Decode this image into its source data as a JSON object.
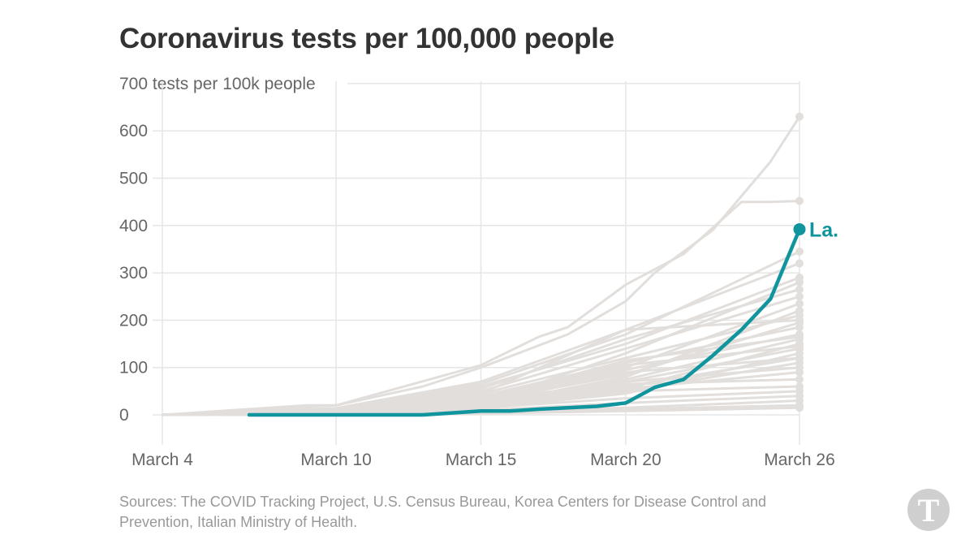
{
  "title": "Coronavirus tests per 100,000 people",
  "sources": "Sources: The COVID Tracking Project, U.S. Census Bureau, Korea Centers for Disease Control and Prevention, Italian Ministry of Health.",
  "logo_icon": "nyt-t-logo-icon",
  "colors": {
    "highlight": "#10959e",
    "background_series": "#e2dedb",
    "grid": "#e6e6e6",
    "axis_text": "#666666",
    "title": "#333333",
    "sources": "#999999"
  },
  "chart_data": {
    "type": "line",
    "title": "Coronavirus tests per 100,000 people",
    "ylabel": "tests per 100k people",
    "ylim": [
      0,
      700
    ],
    "yticks": [
      0,
      100,
      200,
      300,
      400,
      500,
      600,
      700
    ],
    "ytick_labels": [
      "0",
      "100",
      "200",
      "300",
      "400",
      "500",
      "600",
      "700 tests per 100k people"
    ],
    "x_start_day": 4,
    "x_end_day": 26,
    "xticks": [
      4,
      10,
      15,
      20,
      26
    ],
    "xtick_labels": [
      "March 4",
      "March 10",
      "March 15",
      "March 20",
      "March 26"
    ],
    "grid": true,
    "highlight": {
      "name": "La.",
      "x": [
        7,
        13,
        15,
        16,
        17,
        18,
        19,
        20,
        21,
        22,
        23,
        24,
        25,
        26
      ],
      "values": [
        0,
        0,
        8,
        8,
        12,
        15,
        18,
        25,
        58,
        75,
        125,
        180,
        245,
        392
      ]
    },
    "background_series": [
      {
        "x": [
          4,
          10,
          15,
          20,
          26
        ],
        "values": [
          0,
          5,
          15,
          35,
          50
        ]
      },
      {
        "x": [
          4,
          10,
          15,
          20,
          26
        ],
        "values": [
          0,
          3,
          10,
          25,
          40
        ]
      },
      {
        "x": [
          4,
          10,
          15,
          20,
          26
        ],
        "values": [
          0,
          2,
          8,
          15,
          30
        ]
      },
      {
        "x": [
          4,
          10,
          15,
          20,
          26
        ],
        "values": [
          0,
          1,
          5,
          12,
          20
        ]
      },
      {
        "x": [
          6,
          10,
          15,
          20,
          26
        ],
        "values": [
          0,
          0,
          3,
          8,
          15
        ]
      },
      {
        "x": [
          4,
          10,
          15,
          20,
          26
        ],
        "values": [
          0,
          6,
          20,
          55,
          90
        ]
      },
      {
        "x": [
          4,
          10,
          15,
          20,
          26
        ],
        "values": [
          0,
          5,
          18,
          50,
          110
        ]
      },
      {
        "x": [
          4,
          10,
          15,
          20,
          26
        ],
        "values": [
          0,
          7,
          25,
          60,
          120
        ]
      },
      {
        "x": [
          4,
          10,
          15,
          20,
          26
        ],
        "values": [
          0,
          8,
          30,
          70,
          140
        ]
      },
      {
        "x": [
          4,
          10,
          15,
          20,
          26
        ],
        "values": [
          0,
          4,
          15,
          45,
          130
        ]
      },
      {
        "x": [
          4,
          10,
          15,
          20,
          26
        ],
        "values": [
          0,
          6,
          22,
          75,
          160
        ]
      },
      {
        "x": [
          4,
          10,
          15,
          20,
          26
        ],
        "values": [
          0,
          3,
          12,
          55,
          150
        ]
      },
      {
        "x": [
          4,
          10,
          15,
          20,
          26
        ],
        "values": [
          0,
          10,
          35,
          95,
          170
        ]
      },
      {
        "x": [
          4,
          10,
          15,
          20,
          26
        ],
        "values": [
          0,
          9,
          40,
          110,
          185
        ]
      },
      {
        "x": [
          4,
          10,
          15,
          20,
          26
        ],
        "values": [
          0,
          7,
          28,
          85,
          195
        ]
      },
      {
        "x": [
          4,
          10,
          15,
          20,
          26
        ],
        "values": [
          0,
          12,
          45,
          120,
          210
        ]
      },
      {
        "x": [
          4,
          10,
          15,
          20,
          26
        ],
        "values": [
          0,
          5,
          20,
          80,
          220
        ]
      },
      {
        "x": [
          4,
          10,
          15,
          20,
          26
        ],
        "values": [
          0,
          8,
          35,
          100,
          235
        ]
      },
      {
        "x": [
          4,
          10,
          15,
          20,
          26
        ],
        "values": [
          0,
          11,
          50,
          140,
          250
        ]
      },
      {
        "x": [
          4,
          10,
          15,
          20,
          26
        ],
        "values": [
          0,
          10,
          55,
          160,
          265
        ]
      },
      {
        "x": [
          4,
          10,
          15,
          20,
          26
        ],
        "values": [
          0,
          6,
          25,
          130,
          280
        ]
      },
      {
        "x": [
          4,
          10,
          15,
          20,
          26
        ],
        "values": [
          0,
          4,
          30,
          90,
          120
        ]
      },
      {
        "x": [
          4,
          10,
          15,
          20,
          26
        ],
        "values": [
          0,
          9,
          38,
          105,
          145
        ]
      },
      {
        "x": [
          4,
          10,
          15,
          20,
          26
        ],
        "values": [
          0,
          6,
          32,
          115,
          165
        ]
      },
      {
        "x": [
          4,
          10,
          15,
          20,
          26
        ],
        "values": [
          0,
          7,
          28,
          65,
          75
        ]
      },
      {
        "x": [
          4,
          10,
          15,
          20,
          26
        ],
        "values": [
          0,
          5,
          20,
          50,
          60
        ]
      },
      {
        "x": [
          4,
          10,
          15,
          20,
          26
        ],
        "values": [
          0,
          8,
          25,
          70,
          100
        ]
      },
      {
        "x": [
          4,
          10,
          15,
          20,
          26
        ],
        "values": [
          0,
          10,
          45,
          180,
          200
        ]
      },
      {
        "x": [
          4,
          10,
          15,
          20,
          26
        ],
        "values": [
          0,
          12,
          60,
          150,
          290
        ]
      },
      {
        "x": [
          4,
          10,
          15,
          20,
          26
        ],
        "values": [
          0,
          14,
          70,
          180,
          320
        ]
      },
      {
        "x": [
          4,
          10,
          15,
          20,
          26
        ],
        "values": [
          0,
          13,
          65,
          170,
          345
        ]
      },
      {
        "x": [
          4,
          10,
          15,
          17,
          18,
          20,
          22,
          24,
          25,
          26
        ],
        "values": [
          0,
          20,
          105,
          165,
          185,
          275,
          340,
          450,
          450,
          452
        ]
      },
      {
        "x": [
          4,
          6,
          9,
          10,
          13,
          15,
          18,
          20,
          21,
          23,
          25,
          26
        ],
        "values": [
          0,
          8,
          20,
          20,
          60,
          100,
          170,
          240,
          300,
          390,
          535,
          630
        ]
      }
    ]
  }
}
